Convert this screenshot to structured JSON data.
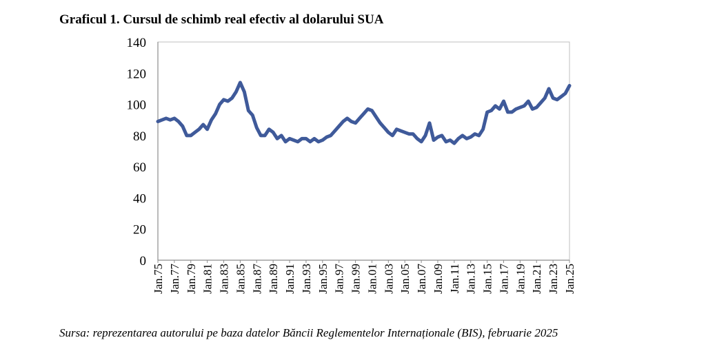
{
  "title": "Graficul 1. Cursul de schimb real efectiv al dolarului SUA",
  "source": "Sursa: reprezentarea autorului pe baza datelor Băncii Reglementelor Internaționale (BIS), februarie 2025",
  "colors": {
    "line": "#3f5a9a",
    "frame": "#bfbfbf",
    "axis": "#8c8c8c"
  },
  "chart_data": {
    "type": "line",
    "title": "",
    "xlabel": "",
    "ylabel": "",
    "ylim": [
      0,
      140
    ],
    "yticks": [
      0,
      20,
      40,
      60,
      80,
      100,
      120,
      140
    ],
    "xticks": [
      "Jan.75",
      "Jan.77",
      "Jan.79",
      "Jan.81",
      "Jan.83",
      "Jan.85",
      "Jan.87",
      "Jan.89",
      "Jan.91",
      "Jan.93",
      "Jan.95",
      "Jan.97",
      "Jan.99",
      "Jan.01",
      "Jan.03",
      "Jan.05",
      "Jan.07",
      "Jan.09",
      "Jan.11",
      "Jan.13",
      "Jan.15",
      "Jan.17",
      "Jan.19",
      "Jan.21",
      "Jan.23",
      "Jan.25"
    ],
    "grid": false,
    "legend": "none",
    "series": [
      {
        "name": "",
        "x": [
          1975,
          1975.5,
          1976,
          1976.5,
          1977,
          1977.5,
          1978,
          1978.5,
          1979,
          1979.5,
          1980,
          1980.5,
          1981,
          1981.5,
          1982,
          1982.5,
          1983,
          1983.5,
          1984,
          1984.5,
          1985,
          1985.5,
          1986,
          1986.5,
          1987,
          1987.5,
          1988,
          1988.5,
          1989,
          1989.5,
          1990,
          1990.5,
          1991,
          1991.5,
          1992,
          1992.5,
          1993,
          1993.5,
          1994,
          1994.5,
          1995,
          1995.5,
          1996,
          1996.5,
          1997,
          1997.5,
          1998,
          1998.5,
          1999,
          1999.5,
          2000,
          2000.5,
          2001,
          2001.5,
          2002,
          2002.5,
          2003,
          2003.5,
          2004,
          2004.5,
          2005,
          2005.5,
          2006,
          2006.5,
          2007,
          2007.5,
          2008,
          2008.5,
          2009,
          2009.5,
          2010,
          2010.5,
          2011,
          2011.5,
          2012,
          2012.5,
          2013,
          2013.5,
          2014,
          2014.5,
          2015,
          2015.5,
          2016,
          2016.5,
          2017,
          2017.5,
          2018,
          2018.5,
          2019,
          2019.5,
          2020,
          2020.5,
          2021,
          2021.5,
          2022,
          2022.5,
          2023,
          2023.5,
          2024,
          2024.5,
          2025
        ],
        "y": [
          89,
          90,
          91,
          90,
          91,
          89,
          86,
          80,
          80,
          82,
          84,
          87,
          84,
          90,
          94,
          100,
          103,
          102,
          104,
          108,
          114,
          108,
          96,
          93,
          85,
          80,
          80,
          84,
          82,
          78,
          80,
          76,
          78,
          77,
          76,
          78,
          78,
          76,
          78,
          76,
          77,
          79,
          80,
          83,
          86,
          89,
          91,
          89,
          88,
          91,
          94,
          97,
          96,
          92,
          88,
          85,
          82,
          80,
          84,
          83,
          82,
          81,
          81,
          78,
          76,
          80,
          88,
          77,
          79,
          80,
          76,
          77,
          75,
          78,
          80,
          78,
          79,
          81,
          80,
          84,
          95,
          96,
          99,
          97,
          102,
          95,
          95,
          97,
          98,
          99,
          102,
          97,
          98,
          101,
          104,
          110,
          104,
          103,
          105,
          107,
          112
        ]
      }
    ]
  }
}
